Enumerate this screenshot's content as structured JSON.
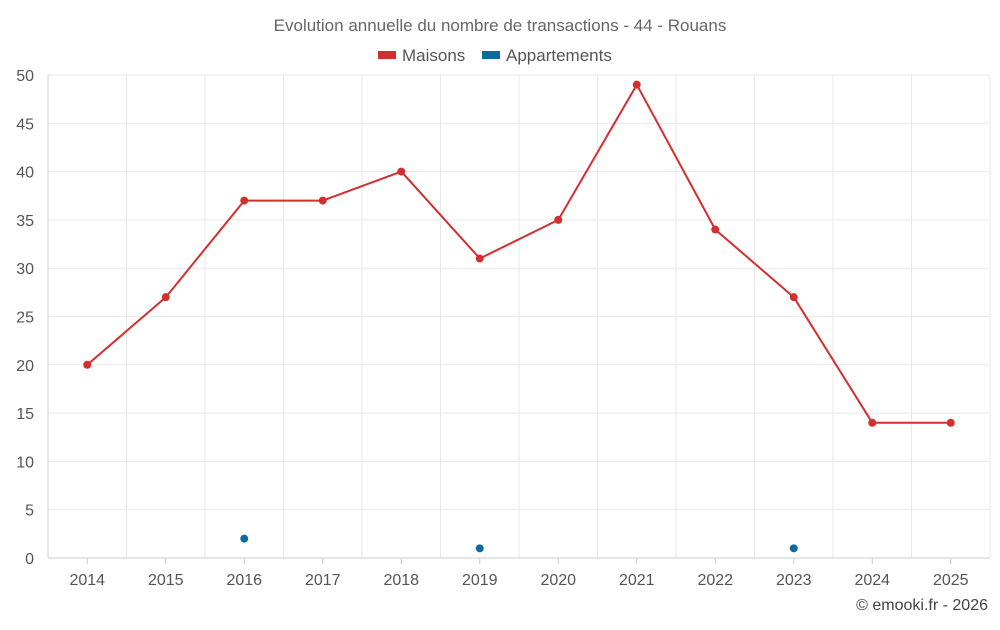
{
  "chart_data": {
    "type": "line",
    "title": "Evolution annuelle du nombre de transactions - 44 - Rouans",
    "categories": [
      "2014",
      "2015",
      "2016",
      "2017",
      "2018",
      "2019",
      "2020",
      "2021",
      "2022",
      "2023",
      "2024",
      "2025"
    ],
    "ylim": [
      0,
      50
    ],
    "yticks": [
      0,
      5,
      10,
      15,
      20,
      25,
      30,
      35,
      40,
      45,
      50
    ],
    "grid": true,
    "legend_position": "top-center",
    "xlabel": "",
    "ylabel": "",
    "series": [
      {
        "name": "Maisons",
        "color": "#d32f2f",
        "values": [
          20,
          27,
          37,
          37,
          40,
          31,
          35,
          49,
          34,
          27,
          14,
          14
        ]
      },
      {
        "name": "Appartements",
        "color": "#0d6aa0",
        "values": [
          null,
          null,
          2,
          null,
          null,
          1,
          null,
          null,
          null,
          1,
          null,
          null
        ]
      }
    ],
    "credit": "© emooki.fr - 2026"
  }
}
